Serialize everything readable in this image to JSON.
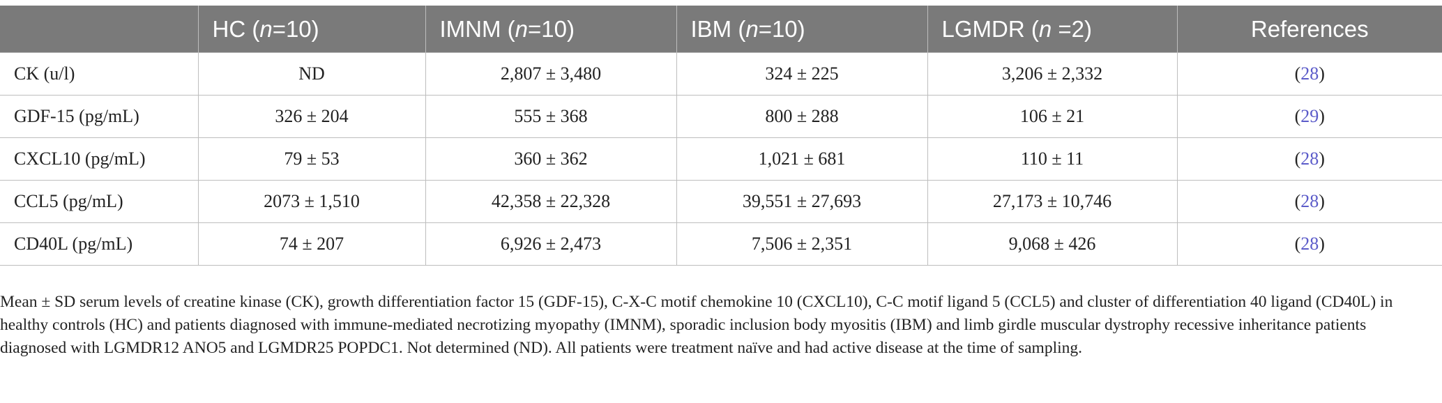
{
  "table": {
    "headers": [
      {
        "pre": "",
        "italic": "",
        "post": ""
      },
      {
        "pre": "HC (",
        "italic": "n",
        "post": "=10)"
      },
      {
        "pre": "IMNM (",
        "italic": "n",
        "post": "=10)"
      },
      {
        "pre": "IBM (",
        "italic": "n",
        "post": "=10)"
      },
      {
        "pre": "LGMDR (",
        "italic": "n",
        "post": " =2)"
      },
      {
        "pre": "References",
        "italic": "",
        "post": ""
      }
    ],
    "rows": [
      {
        "label": "CK (u/l)",
        "hc": "ND",
        "imnm": "2,807 ± 3,480",
        "ibm": "324 ± 225",
        "lgmdr": "3,206 ± 2,332",
        "ref_open": "(",
        "ref_num": "28",
        "ref_close": ")"
      },
      {
        "label": "GDF-15 (pg/mL)",
        "hc": "326 ± 204",
        "imnm": "555 ± 368",
        "ibm": "800 ± 288",
        "lgmdr": "106 ± 21",
        "ref_open": "(",
        "ref_num": "29",
        "ref_close": ")"
      },
      {
        "label": "CXCL10 (pg/mL)",
        "hc": "79 ± 53",
        "imnm": "360 ± 362",
        "ibm": "1,021 ± 681",
        "lgmdr": "110 ± 11",
        "ref_open": "(",
        "ref_num": "28",
        "ref_close": ")"
      },
      {
        "label": "CCL5 (pg/mL)",
        "hc": "2073 ± 1,510",
        "imnm": "42,358 ± 22,328",
        "ibm": "39,551 ± 27,693",
        "lgmdr": "27,173 ± 10,746",
        "ref_open": "(",
        "ref_num": "28",
        "ref_close": ")"
      },
      {
        "label": "CD40L (pg/mL)",
        "hc": "74 ± 207",
        "imnm": "6,926 ± 2,473",
        "ibm": "7,506 ± 2,351",
        "lgmdr": "9,068 ± 426",
        "ref_open": "(",
        "ref_num": "28",
        "ref_close": ")"
      }
    ]
  },
  "footnote": "Mean ± SD serum levels of creatine kinase (CK), growth differentiation factor 15 (GDF-15), C-X-C motif chemokine 10 (CXCL10), C-C motif ligand 5 (CCL5) and cluster of differentiation 40 ligand (CD40L) in healthy controls (HC) and patients diagnosed with immune-mediated necrotizing myopathy (IMNM), sporadic inclusion body myositis (IBM) and limb girdle muscular dystrophy recessive inheritance patients diagnosed with LGMDR12 ANO5 and LGMDR25 POPDC1. Not determined (ND). All patients were treatment naïve and had active disease at the time of sampling.",
  "colors": {
    "header_bg": "#7a7a7a",
    "header_text": "#ffffff",
    "reference_link": "#5b5bc9",
    "grid": "#bdbdbd"
  }
}
